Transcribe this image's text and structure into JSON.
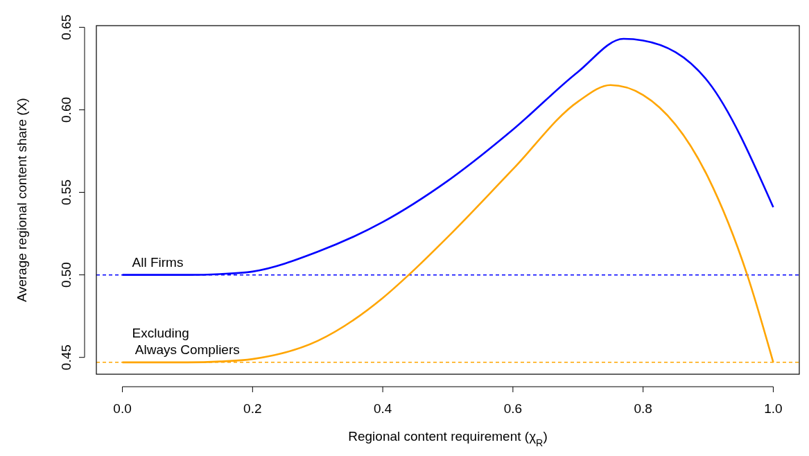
{
  "chart_data": {
    "type": "line",
    "xlabel": "Regional content requirement (χ$_{R}$)",
    "ylabel": "Average regional content share (X)",
    "xlim": [
      -0.04,
      1.04
    ],
    "ylim": [
      0.4398,
      0.651
    ],
    "xticks": [
      {
        "value": 0,
        "label": "0.0"
      },
      0.2,
      0.4,
      0.6,
      0.8,
      {
        "value": 1,
        "label": "1.0"
      }
    ],
    "yticks": [
      0.45,
      {
        "value": 0.5,
        "label": "0.50"
      },
      0.55,
      {
        "value": 0.6,
        "label": "0.60"
      },
      0.65
    ],
    "grid": false,
    "line_style": "solid",
    "marker": "none",
    "series": [
      {
        "name": "All Firms",
        "color": "#0000ff",
        "x": [
          0,
          0.1,
          0.15,
          0.2,
          0.3,
          0.4,
          0.5,
          0.6,
          0.7,
          0.77,
          0.8,
          0.9,
          1.0
        ],
        "values": [
          0.5,
          0.5,
          0.5005,
          0.502,
          0.514,
          0.532,
          0.557,
          0.588,
          0.623,
          0.643,
          0.642,
          0.617,
          0.541
        ]
      },
      {
        "name": "Excluding\n Always Compliers",
        "color": "#ffa500",
        "x": [
          0,
          0.1,
          0.15,
          0.2,
          0.3,
          0.4,
          0.44,
          0.5,
          0.6,
          0.7,
          0.75,
          0.8,
          0.9,
          0.96,
          1.0
        ],
        "values": [
          0.447,
          0.447,
          0.4475,
          0.449,
          0.46,
          0.486,
          0.5,
          0.523,
          0.564,
          0.605,
          0.615,
          0.609,
          0.559,
          0.5,
          0.447
        ]
      }
    ],
    "ref_lines": [
      {
        "axis": "y",
        "value": 0.5,
        "color": "#0000ff",
        "line_style": "dashed"
      },
      {
        "axis": "y",
        "value": 0.447,
        "color": "#ffa500",
        "line_style": "dashed"
      }
    ]
  }
}
